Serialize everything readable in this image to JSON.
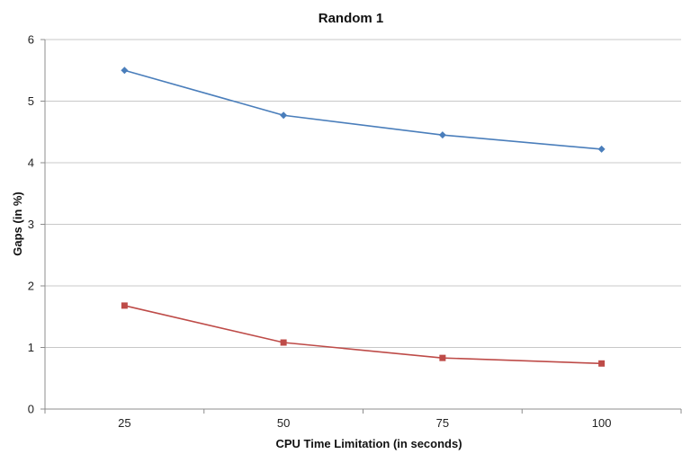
{
  "chart_data": {
    "type": "line",
    "title": "Random 1",
    "xlabel": "CPU Time Limitation (in seconds)",
    "ylabel": "Gaps (in %)",
    "categories": [
      "25",
      "50",
      "75",
      "100"
    ],
    "ylim": [
      0,
      6
    ],
    "yticks": [
      0,
      1,
      2,
      3,
      4,
      5,
      6
    ],
    "grid": true,
    "legend": "none",
    "series": [
      {
        "values": [
          5.5,
          4.77,
          4.45,
          4.22
        ],
        "color": "#4a7ebb",
        "marker": "diamond"
      },
      {
        "values": [
          1.68,
          1.08,
          0.83,
          0.74
        ],
        "color": "#be4b48",
        "marker": "square"
      }
    ]
  }
}
